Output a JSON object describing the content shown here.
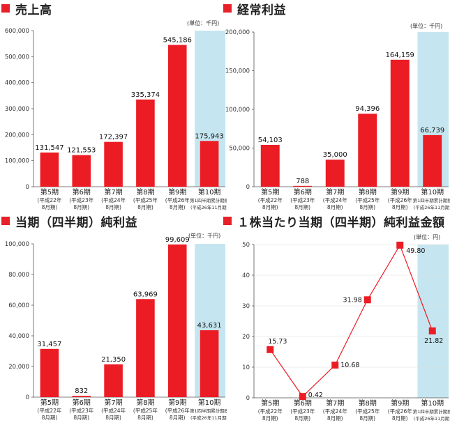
{
  "chart_data": [
    {
      "type": "bar",
      "title": "売上高",
      "unit": "(単位：千円)",
      "ylim": [
        0,
        600000
      ],
      "yticks": [
        "0",
        "100,000",
        "200,000",
        "300,000",
        "400,000",
        "500,000",
        "600,000"
      ],
      "categories": [
        {
          "l1": "第5期",
          "l2": "(平成22年",
          "l3": "8月期)"
        },
        {
          "l1": "第6期",
          "l2": "(平成23年",
          "l3": "8月期)"
        },
        {
          "l1": "第7期",
          "l2": "(平成24年",
          "l3": "8月期)"
        },
        {
          "l1": "第8期",
          "l2": "(平成25年",
          "l3": "8月期)"
        },
        {
          "l1": "第9期",
          "l2": "(平成26年",
          "l3": "8月期)"
        },
        {
          "l1": "第10期",
          "l2": "第1四半期累計期間",
          "l3": "(平成26年11月期)"
        }
      ],
      "values": [
        131547,
        121553,
        172397,
        335374,
        545186,
        175943
      ],
      "labels": [
        "131,547",
        "121,553",
        "172,397",
        "335,374",
        "545,186",
        "175,943"
      ],
      "highlight_last": true
    },
    {
      "type": "bar",
      "title": "経常利益",
      "unit": "(単位：千円)",
      "ylim": [
        0,
        200000
      ],
      "yticks": [
        "0",
        "50,000",
        "100,000",
        "150,000",
        "200,000"
      ],
      "categories": [
        {
          "l1": "第5期",
          "l2": "(平成22年",
          "l3": "8月期)"
        },
        {
          "l1": "第6期",
          "l2": "(平成23年",
          "l3": "8月期)"
        },
        {
          "l1": "第7期",
          "l2": "(平成24年",
          "l3": "8月期)"
        },
        {
          "l1": "第8期",
          "l2": "(平成25年",
          "l3": "8月期)"
        },
        {
          "l1": "第9期",
          "l2": "(平成26年",
          "l3": "8月期)"
        },
        {
          "l1": "第10期",
          "l2": "第1四半期累計期間",
          "l3": "(平成26年11月期)"
        }
      ],
      "values": [
        54103,
        788,
        35000,
        94396,
        164159,
        66739
      ],
      "labels": [
        "54,103",
        "788",
        "35,000",
        "94,396",
        "164,159",
        "66,739"
      ],
      "highlight_last": true
    },
    {
      "type": "bar",
      "title": "当期（四半期）純利益",
      "unit": "(単位：千円)",
      "ylim": [
        0,
        100000
      ],
      "yticks": [
        "0",
        "20,000",
        "40,000",
        "60,000",
        "80,000",
        "100,000"
      ],
      "categories": [
        {
          "l1": "第5期",
          "l2": "(平成22年",
          "l3": "8月期)"
        },
        {
          "l1": "第6期",
          "l2": "(平成23年",
          "l3": "8月期)"
        },
        {
          "l1": "第7期",
          "l2": "(平成24年",
          "l3": "8月期)"
        },
        {
          "l1": "第8期",
          "l2": "(平成25年",
          "l3": "8月期)"
        },
        {
          "l1": "第9期",
          "l2": "(平成26年",
          "l3": "8月期)"
        },
        {
          "l1": "第10期",
          "l2": "第1四半期累計期間",
          "l3": "(平成26年11月期)"
        }
      ],
      "values": [
        31457,
        832,
        21350,
        63969,
        99609,
        43631
      ],
      "labels": [
        "31,457",
        "832",
        "21,350",
        "63,969",
        "99,609",
        "43,631"
      ],
      "highlight_last": true
    },
    {
      "type": "line",
      "title": "１株当たり当期（四半期）純利益金額",
      "unit": "(単位：円)",
      "ylim": [
        0,
        50
      ],
      "yticks": [
        "0",
        "10",
        "20",
        "30",
        "40",
        "50"
      ],
      "categories": [
        {
          "l1": "第5期",
          "l2": "(平成22年",
          "l3": "8月期)"
        },
        {
          "l1": "第6期",
          "l2": "(平成23年",
          "l3": "8月期)"
        },
        {
          "l1": "第7期",
          "l2": "(平成24年",
          "l3": "8月期)"
        },
        {
          "l1": "第8期",
          "l2": "(平成25年",
          "l3": "8月期)"
        },
        {
          "l1": "第9期",
          "l2": "(平成26年",
          "l3": "8月期)"
        },
        {
          "l1": "第10期",
          "l2": "第1四半期累計期間",
          "l3": "(平成26年11月期)"
        }
      ],
      "values": [
        15.73,
        0.42,
        10.68,
        31.98,
        49.8,
        21.82
      ],
      "labels": [
        "15.73",
        "0.42",
        "10.68",
        "31.98",
        "49.80",
        "21.82"
      ],
      "highlight_last": true
    }
  ],
  "colors": {
    "bar": "#ec1c24",
    "highlight_bg": "#c5e6f0",
    "title_square": "#e8202a",
    "grid": "#dddddd"
  }
}
